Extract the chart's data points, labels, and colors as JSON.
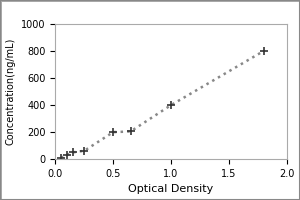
{
  "x_data": [
    0.05,
    0.1,
    0.15,
    0.25,
    0.5,
    0.65,
    1.0,
    1.8
  ],
  "y_data": [
    10,
    31,
    50,
    62,
    200,
    205,
    400,
    800
  ],
  "xlabel": "Optical Density",
  "ylabel": "Concentration(ng/mL)",
  "xlim": [
    0,
    2
  ],
  "ylim": [
    0,
    1000
  ],
  "xticks": [
    0,
    0.5,
    1.0,
    1.5,
    2.0
  ],
  "yticks": [
    0,
    200,
    400,
    600,
    800,
    1000
  ],
  "line_color": "#888888",
  "marker": "+",
  "marker_color": "#333333",
  "marker_size": 6,
  "line_style": "dotted",
  "line_width": 1.8,
  "background_color": "#ffffff",
  "outer_border_color": "#aaaaaa",
  "title": "",
  "xlabel_fontsize": 8,
  "ylabel_fontsize": 7,
  "tick_fontsize": 7
}
